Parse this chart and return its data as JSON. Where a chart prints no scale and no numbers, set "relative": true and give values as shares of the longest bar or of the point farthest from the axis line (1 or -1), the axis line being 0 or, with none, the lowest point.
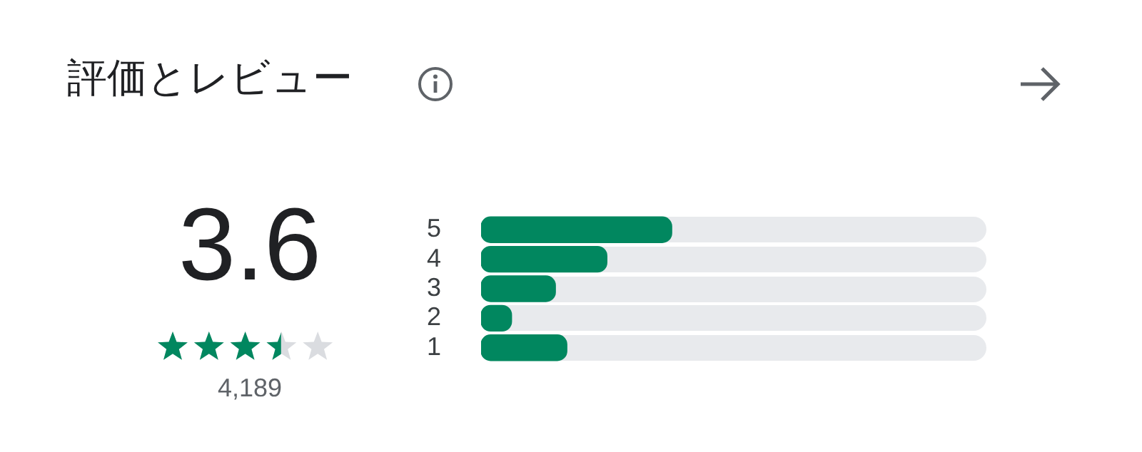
{
  "chart_data": {
    "type": "bar",
    "orientation": "horizontal",
    "relative": true,
    "title": "評価とレビュー",
    "categories": [
      "5",
      "4",
      "3",
      "2",
      "1"
    ],
    "values": [
      1,
      0.66,
      0.39,
      0.16,
      0.45
    ],
    "color": "#01875f",
    "annotations": [
      "3.6",
      "4,189"
    ]
  }
}
